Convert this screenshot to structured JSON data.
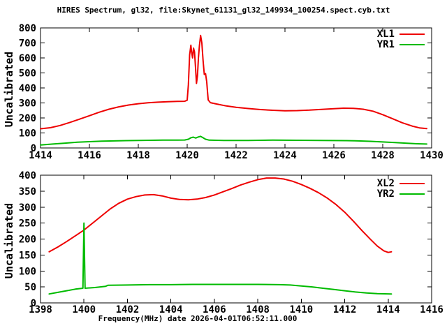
{
  "title": "HIRES Spectrum, gl32, file:Skynet_61131_gl32_149934_100254.spect.cyb.txt",
  "xlabel": "Frequency(MHz) date 2026-04-01T06:52:11.000",
  "colors": {
    "background": "#ffffff",
    "axis": "#000000",
    "xl_red": "#ee0000",
    "yr_green": "#00bb00"
  },
  "chart_data": [
    {
      "type": "line",
      "ylabel": "Uncalibrated",
      "xlim": [
        1414,
        1430
      ],
      "ylim": [
        0,
        800
      ],
      "xticks": [
        1414,
        1416,
        1418,
        1420,
        1422,
        1424,
        1426,
        1428,
        1430
      ],
      "yticks": [
        0,
        100,
        200,
        300,
        400,
        500,
        600,
        700,
        800
      ],
      "grid": false,
      "legend_position": "inside-top-right",
      "series": [
        {
          "name": "XL1",
          "color": "#ee0000",
          "points": [
            [
              1414.0,
              128
            ],
            [
              1414.4,
              135
            ],
            [
              1414.8,
              150
            ],
            [
              1415.2,
              170
            ],
            [
              1415.6,
              192
            ],
            [
              1416.0,
              215
            ],
            [
              1416.4,
              238
            ],
            [
              1416.8,
              258
            ],
            [
              1417.2,
              274
            ],
            [
              1417.6,
              286
            ],
            [
              1418.0,
              295
            ],
            [
              1418.4,
              301
            ],
            [
              1418.8,
              305
            ],
            [
              1419.2,
              308
            ],
            [
              1419.6,
              310
            ],
            [
              1419.9,
              311
            ],
            [
              1420.0,
              318
            ],
            [
              1420.05,
              420
            ],
            [
              1420.1,
              620
            ],
            [
              1420.15,
              685
            ],
            [
              1420.18,
              640
            ],
            [
              1420.22,
              600
            ],
            [
              1420.26,
              665
            ],
            [
              1420.3,
              640
            ],
            [
              1420.34,
              540
            ],
            [
              1420.38,
              430
            ],
            [
              1420.42,
              480
            ],
            [
              1420.46,
              600
            ],
            [
              1420.5,
              680
            ],
            [
              1420.55,
              750
            ],
            [
              1420.6,
              700
            ],
            [
              1420.65,
              580
            ],
            [
              1420.7,
              490
            ],
            [
              1420.75,
              495
            ],
            [
              1420.8,
              440
            ],
            [
              1420.83,
              380
            ],
            [
              1420.86,
              320
            ],
            [
              1420.95,
              302
            ],
            [
              1421.2,
              293
            ],
            [
              1421.6,
              280
            ],
            [
              1422.0,
              271
            ],
            [
              1422.5,
              263
            ],
            [
              1423.0,
              256
            ],
            [
              1423.5,
              251
            ],
            [
              1424.0,
              248
            ],
            [
              1424.5,
              249
            ],
            [
              1425.0,
              252
            ],
            [
              1425.5,
              257
            ],
            [
              1426.0,
              262
            ],
            [
              1426.4,
              265
            ],
            [
              1426.8,
              264
            ],
            [
              1427.2,
              258
            ],
            [
              1427.6,
              245
            ],
            [
              1428.0,
              222
            ],
            [
              1428.4,
              195
            ],
            [
              1428.8,
              168
            ],
            [
              1429.2,
              146
            ],
            [
              1429.5,
              134
            ],
            [
              1429.8,
              129
            ]
          ]
        },
        {
          "name": "YR1",
          "color": "#00bb00",
          "points": [
            [
              1414.0,
              20
            ],
            [
              1414.5,
              26
            ],
            [
              1415.0,
              32
            ],
            [
              1415.5,
              38
            ],
            [
              1416.0,
              42
            ],
            [
              1416.5,
              45
            ],
            [
              1417.0,
              47
            ],
            [
              1417.5,
              49
            ],
            [
              1418.0,
              50
            ],
            [
              1418.5,
              51
            ],
            [
              1419.0,
              52
            ],
            [
              1419.5,
              52
            ],
            [
              1419.9,
              53
            ],
            [
              1420.05,
              58
            ],
            [
              1420.15,
              68
            ],
            [
              1420.25,
              72
            ],
            [
              1420.35,
              66
            ],
            [
              1420.45,
              73
            ],
            [
              1420.55,
              77
            ],
            [
              1420.65,
              68
            ],
            [
              1420.75,
              58
            ],
            [
              1420.9,
              52
            ],
            [
              1421.5,
              50
            ],
            [
              1422.5,
              50
            ],
            [
              1423.5,
              52
            ],
            [
              1424.5,
              51
            ],
            [
              1425.5,
              50
            ],
            [
              1426.5,
              49
            ],
            [
              1427.0,
              47
            ],
            [
              1427.5,
              44
            ],
            [
              1428.0,
              40
            ],
            [
              1428.5,
              36
            ],
            [
              1429.0,
              31
            ],
            [
              1429.4,
              28
            ],
            [
              1429.8,
              26
            ]
          ]
        }
      ]
    },
    {
      "type": "line",
      "ylabel": "Uncalibrated",
      "xlim": [
        1398,
        1416
      ],
      "ylim": [
        0,
        400
      ],
      "xticks": [
        1398,
        1400,
        1402,
        1404,
        1406,
        1408,
        1410,
        1412,
        1414,
        1416
      ],
      "yticks": [
        0,
        50,
        100,
        150,
        200,
        250,
        300,
        350,
        400
      ],
      "grid": false,
      "legend_position": "inside-top-right",
      "series": [
        {
          "name": "XL2",
          "color": "#ee0000",
          "points": [
            [
              1398.4,
              160
            ],
            [
              1398.8,
              175
            ],
            [
              1399.2,
              192
            ],
            [
              1399.6,
              210
            ],
            [
              1400.0,
              228
            ],
            [
              1400.4,
              250
            ],
            [
              1400.8,
              272
            ],
            [
              1401.2,
              294
            ],
            [
              1401.6,
              312
            ],
            [
              1402.0,
              325
            ],
            [
              1402.4,
              333
            ],
            [
              1402.8,
              338
            ],
            [
              1403.2,
              339
            ],
            [
              1403.6,
              335
            ],
            [
              1404.0,
              328
            ],
            [
              1404.4,
              324
            ],
            [
              1404.8,
              323
            ],
            [
              1405.2,
              325
            ],
            [
              1405.6,
              330
            ],
            [
              1406.0,
              338
            ],
            [
              1406.4,
              348
            ],
            [
              1406.8,
              358
            ],
            [
              1407.2,
              369
            ],
            [
              1407.6,
              378
            ],
            [
              1408.0,
              386
            ],
            [
              1408.4,
              391
            ],
            [
              1408.8,
              391
            ],
            [
              1409.2,
              388
            ],
            [
              1409.6,
              381
            ],
            [
              1410.0,
              371
            ],
            [
              1410.4,
              359
            ],
            [
              1410.8,
              345
            ],
            [
              1411.2,
              328
            ],
            [
              1411.6,
              308
            ],
            [
              1412.0,
              284
            ],
            [
              1412.4,
              256
            ],
            [
              1412.8,
              226
            ],
            [
              1413.2,
              198
            ],
            [
              1413.5,
              178
            ],
            [
              1413.8,
              163
            ],
            [
              1414.0,
              158
            ],
            [
              1414.15,
              160
            ]
          ]
        },
        {
          "name": "YR2",
          "color": "#00bb00",
          "points": [
            [
              1398.4,
              28
            ],
            [
              1398.8,
              33
            ],
            [
              1399.2,
              38
            ],
            [
              1399.6,
              43
            ],
            [
              1399.95,
              46
            ],
            [
              1400.0,
              250
            ],
            [
              1400.05,
              46
            ],
            [
              1400.5,
              48
            ],
            [
              1401.0,
              52
            ],
            [
              1401.1,
              55
            ],
            [
              1402.0,
              56
            ],
            [
              1403.0,
              57
            ],
            [
              1404.0,
              57
            ],
            [
              1405.0,
              58
            ],
            [
              1406.0,
              58
            ],
            [
              1407.0,
              58
            ],
            [
              1408.0,
              58
            ],
            [
              1409.0,
              57
            ],
            [
              1409.5,
              56
            ],
            [
              1410.0,
              53
            ],
            [
              1410.5,
              50
            ],
            [
              1411.0,
              46
            ],
            [
              1411.5,
              42
            ],
            [
              1412.0,
              38
            ],
            [
              1412.5,
              34
            ],
            [
              1413.0,
              31
            ],
            [
              1413.5,
              29
            ],
            [
              1414.15,
              28
            ]
          ]
        }
      ]
    }
  ]
}
